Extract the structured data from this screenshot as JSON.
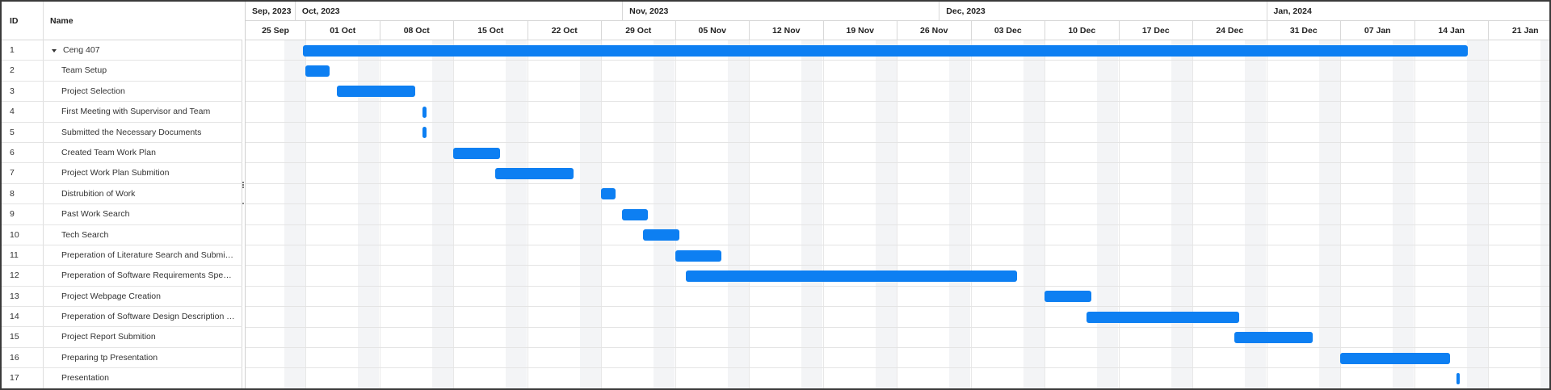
{
  "grid": {
    "header": {
      "id": "ID",
      "name": "Name"
    },
    "rows": [
      {
        "id": "1",
        "name": "Ceng 407",
        "parent": true
      },
      {
        "id": "2",
        "name": "Team Setup"
      },
      {
        "id": "3",
        "name": "Project Selection"
      },
      {
        "id": "4",
        "name": "First Meeting with Supervisor and Team"
      },
      {
        "id": "5",
        "name": "Submitted the Necessary Documents"
      },
      {
        "id": "6",
        "name": "Created Team Work Plan"
      },
      {
        "id": "7",
        "name": "Project Work Plan Submition"
      },
      {
        "id": "8",
        "name": "Distrubition of Work"
      },
      {
        "id": "9",
        "name": "Past Work Search"
      },
      {
        "id": "10",
        "name": "Tech Search"
      },
      {
        "id": "11",
        "name": "Preperation of Literature Search and Submition"
      },
      {
        "id": "12",
        "name": "Preperation of Software Requirements Specifi..."
      },
      {
        "id": "13",
        "name": "Project Webpage Creation"
      },
      {
        "id": "14",
        "name": "Preperation of Software Design Description Te..."
      },
      {
        "id": "15",
        "name": "Project Report Submition"
      },
      {
        "id": "16",
        "name": "Preparing tp Presentation"
      },
      {
        "id": "17",
        "name": "Presentation"
      }
    ]
  },
  "timeline": {
    "months": [
      "Sep, 2023",
      "Oct, 2023",
      "Nov, 2023",
      "Dec, 2023",
      "Jan, 2024"
    ],
    "weeks": [
      "25 Sep",
      "01 Oct",
      "08 Oct",
      "15 Oct",
      "22 Oct",
      "29 Oct",
      "05 Nov",
      "12 Nov",
      "19 Nov",
      "26 Nov",
      "03 Dec",
      "10 Dec",
      "17 Dec",
      "24 Dec",
      "31 Dec",
      "07 Jan",
      "14 Jan",
      "21 Jan"
    ]
  },
  "tasks_schedule": [
    {
      "id": "1",
      "start_day": 6.8,
      "duration_days": 110.3
    },
    {
      "id": "2",
      "start_day": 7.0,
      "duration_days": 2.3
    },
    {
      "id": "3",
      "start_day": 10.0,
      "duration_days": 7.4
    },
    {
      "id": "4",
      "start_day": 18.1,
      "duration_days": 0.35
    },
    {
      "id": "5",
      "start_day": 18.1,
      "duration_days": 0.35
    },
    {
      "id": "6",
      "start_day": 21.0,
      "duration_days": 4.4
    },
    {
      "id": "7",
      "start_day": 25.0,
      "duration_days": 7.4
    },
    {
      "id": "8",
      "start_day": 35.0,
      "duration_days": 1.4
    },
    {
      "id": "9",
      "start_day": 37.0,
      "duration_days": 2.4
    },
    {
      "id": "10",
      "start_day": 39.0,
      "duration_days": 3.4
    },
    {
      "id": "11",
      "start_day": 42.0,
      "duration_days": 4.4
    },
    {
      "id": "12",
      "start_day": 43.0,
      "duration_days": 31.4
    },
    {
      "id": "13",
      "start_day": 77.0,
      "duration_days": 4.4
    },
    {
      "id": "14",
      "start_day": 81.0,
      "duration_days": 14.4
    },
    {
      "id": "15",
      "start_day": 95.0,
      "duration_days": 7.4
    },
    {
      "id": "16",
      "start_day": 105.0,
      "duration_days": 10.4
    },
    {
      "id": "17",
      "start_day": 116.0,
      "duration_days": 0.35
    }
  ],
  "colors": {
    "bar": "#0d7ff2",
    "weekend": "#f3f4f6",
    "border": "#d8d8d8"
  }
}
